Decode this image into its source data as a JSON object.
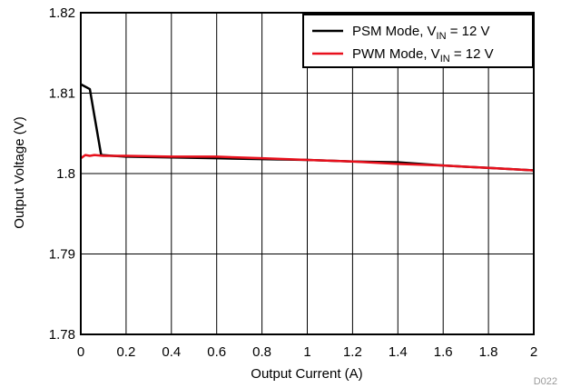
{
  "chart_data": {
    "type": "line",
    "xlabel": "Output Current (A)",
    "ylabel": "Output Voltage (V)",
    "xlim": [
      0,
      2
    ],
    "ylim": [
      1.78,
      1.82
    ],
    "x_ticks": [
      0,
      0.2,
      0.4,
      0.6,
      0.8,
      1,
      1.2,
      1.4,
      1.6,
      1.8,
      2
    ],
    "x_tick_labels": [
      "0",
      "0.2",
      "0.4",
      "0.6",
      "0.8",
      "1",
      "1.2",
      "1.4",
      "1.6",
      "1.8",
      "2"
    ],
    "y_ticks": [
      1.78,
      1.79,
      1.8,
      1.81,
      1.82
    ],
    "y_tick_labels": [
      "1.78",
      "1.79",
      "1.8",
      "1.81",
      "1.82"
    ],
    "grid": true,
    "legend_position": "top-right",
    "series": [
      {
        "name": "PSM Mode, V_IN = 12 V",
        "legend_main": "PSM Mode, V",
        "legend_sub": "IN",
        "legend_tail": " = 12 V",
        "color": "#000000",
        "x": [
          0.0,
          0.04,
          0.06,
          0.09,
          0.2,
          0.4,
          0.6,
          0.8,
          1.0,
          1.2,
          1.4,
          1.6,
          1.8,
          2.0
        ],
        "y": [
          1.8111,
          1.8105,
          1.8072,
          1.8023,
          1.8021,
          1.802,
          1.8019,
          1.8018,
          1.8017,
          1.8015,
          1.8014,
          1.801,
          1.8007,
          1.8004
        ]
      },
      {
        "name": "PWM Mode, V_IN = 12 V",
        "legend_main": "PWM Mode, V",
        "legend_sub": "IN",
        "legend_tail": " = 12 V",
        "color": "#e8101c",
        "x": [
          0.0,
          0.02,
          0.04,
          0.06,
          0.1,
          0.2,
          0.4,
          0.6,
          0.8,
          1.0,
          1.2,
          1.4,
          1.6,
          1.8,
          2.0
        ],
        "y": [
          1.8019,
          1.8023,
          1.8022,
          1.8023,
          1.8022,
          1.8022,
          1.8021,
          1.8021,
          1.8019,
          1.8017,
          1.8015,
          1.8012,
          1.801,
          1.8007,
          1.8004
        ]
      }
    ],
    "figure_code": "D022"
  }
}
